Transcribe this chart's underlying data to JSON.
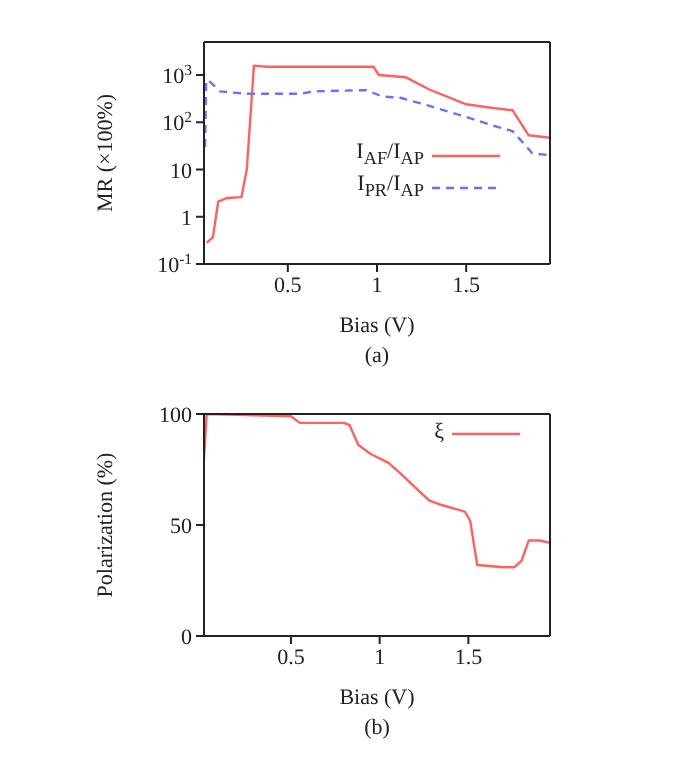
{
  "chart_data": [
    {
      "type": "line",
      "xlabel": "Bias (V)",
      "ylabel": "MR (×100%)",
      "log": "y",
      "xlim": [
        0.03,
        1.97
      ],
      "xticks": [
        0.5,
        1,
        1.5
      ],
      "ylim": [
        0.1,
        5000
      ],
      "yticks": [
        {
          "value": 0.1,
          "label": "10$^{-1}$"
        },
        1,
        10,
        {
          "value": 100,
          "label": "10$^{2}$"
        },
        {
          "value": 1000,
          "label": "10$^{3}$"
        }
      ],
      "grid": false,
      "legend": "right",
      "marker": "none",
      "annotations": [
        "(a)"
      ],
      "series": [
        {
          "name": "I$_{AF}$/I$_{AP}$",
          "color": "#ff6060",
          "line_style": "solid",
          "x": [
            0.045,
            0.08,
            0.11,
            0.16,
            0.24,
            0.27,
            0.31,
            0.38,
            0.98,
            1.01,
            1.16,
            1.29,
            1.5,
            1.65,
            1.76,
            1.85,
            1.97
          ],
          "values": [
            0.28,
            0.37,
            2.1,
            2.5,
            2.6,
            10,
            1580,
            1500,
            1500,
            1000,
            900,
            500,
            240,
            200,
            180,
            53,
            47
          ]
        },
        {
          "name": "I$_{PR}$/I$_{AP}$",
          "color": "#6f6fff",
          "line_style": "dashed",
          "x": [
            0.036,
            0.042,
            0.05,
            0.12,
            0.27,
            0.57,
            0.64,
            0.94,
            1.03,
            1.13,
            1.28,
            1.5,
            1.65,
            1.76,
            1.84,
            1.87,
            1.97
          ],
          "values": [
            30,
            700,
            800,
            450,
            400,
            400,
            450,
            480,
            350,
            330,
            230,
            130,
            85,
            65,
            30,
            22,
            20
          ]
        }
      ]
    },
    {
      "type": "line",
      "xlabel": "Bias (V)",
      "ylabel": "Polarization (%)",
      "xlim": [
        0.01,
        1.96
      ],
      "xticks": [
        0.5,
        1,
        1.5
      ],
      "ylim": [
        0,
        100
      ],
      "yticks": [
        0,
        50,
        100
      ],
      "grid": false,
      "legend": "top right",
      "marker": "none",
      "annotations": [
        "(b)"
      ],
      "series": [
        {
          "name": "ξ",
          "color": "#ff6060",
          "line_style": "solid",
          "x": [
            0.01,
            0.025,
            0.5,
            0.55,
            0.62,
            0.8,
            0.83,
            0.88,
            0.95,
            1.05,
            1.12,
            1.2,
            1.28,
            1.35,
            1.48,
            1.51,
            1.55,
            1.7,
            1.76,
            1.8,
            1.84,
            1.9,
            1.96
          ],
          "values": [
            80,
            100,
            99,
            96,
            96,
            96,
            95,
            86,
            82,
            78,
            73,
            67,
            61,
            59,
            56,
            52,
            32,
            31,
            31,
            34,
            43,
            43,
            42
          ]
        }
      ]
    }
  ]
}
